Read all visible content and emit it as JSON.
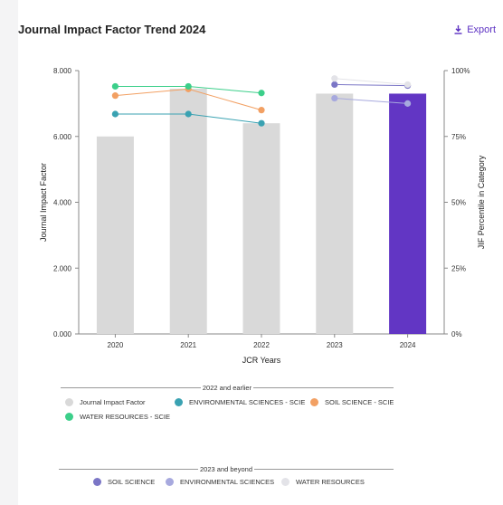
{
  "header": {
    "title": "Journal Impact Factor Trend 2024",
    "export_label": "Export"
  },
  "chart_data": {
    "type": "bar",
    "categories": [
      "2020",
      "2021",
      "2022",
      "2023",
      "2024"
    ],
    "xlabel": "JCR Years",
    "ylabel": "Journal Impact Factor",
    "y2label": "JIF Percentile in Category",
    "ylim": [
      0,
      8
    ],
    "yticks": [
      "0.000",
      "2.000",
      "4.000",
      "6.000",
      "8.000"
    ],
    "y2lim": [
      0,
      100
    ],
    "y2ticks": [
      "0%",
      "25%",
      "50%",
      "75%",
      "100%"
    ],
    "bars": {
      "name": "Journal Impact Factor",
      "values": [
        6.0,
        7.45,
        6.4,
        7.3,
        7.3
      ],
      "colors": [
        "#d9d9d9",
        "#d9d9d9",
        "#d9d9d9",
        "#d9d9d9",
        "#6236c4"
      ]
    },
    "percentile_series": [
      {
        "name": "ENVIRONMENTAL SCIENCES - SCIE",
        "color": "#3aa2b2",
        "values": [
          83.5,
          83.5,
          80.0,
          null,
          null
        ]
      },
      {
        "name": "SOIL SCIENCE - SCIE",
        "color": "#f2a063",
        "values": [
          90.5,
          93.0,
          85.0,
          null,
          null
        ]
      },
      {
        "name": "WATER RESOURCES - SCIE",
        "color": "#3ccf8a",
        "values": [
          94.0,
          94.0,
          91.5,
          null,
          null
        ]
      },
      {
        "name": "SOIL SCIENCE",
        "color": "#7b76c6",
        "values": [
          null,
          null,
          null,
          94.7,
          94.3
        ]
      },
      {
        "name": "ENVIRONMENTAL SCIENCES",
        "color": "#a7a9de",
        "values": [
          null,
          null,
          null,
          89.5,
          87.5
        ]
      },
      {
        "name": "WATER RESOURCES",
        "color": "#e3e3e8",
        "values": [
          null,
          null,
          null,
          97.0,
          94.7
        ]
      }
    ],
    "legend": {
      "group1": {
        "title": "2022 and earlier",
        "items": [
          {
            "label": "Journal Impact Factor",
            "color": "#d9d9d9"
          },
          {
            "label": "ENVIRONMENTAL SCIENCES - SCIE",
            "color": "#3aa2b2"
          },
          {
            "label": "SOIL SCIENCE - SCIE",
            "color": "#f2a063"
          },
          {
            "label": "WATER RESOURCES - SCIE",
            "color": "#3ccf8a"
          }
        ]
      },
      "group2": {
        "title": "2023 and beyond",
        "items": [
          {
            "label": "SOIL SCIENCE",
            "color": "#7b76c6"
          },
          {
            "label": "ENVIRONMENTAL SCIENCES",
            "color": "#a7a9de"
          },
          {
            "label": "WATER RESOURCES",
            "color": "#e3e3e8"
          }
        ]
      }
    }
  }
}
